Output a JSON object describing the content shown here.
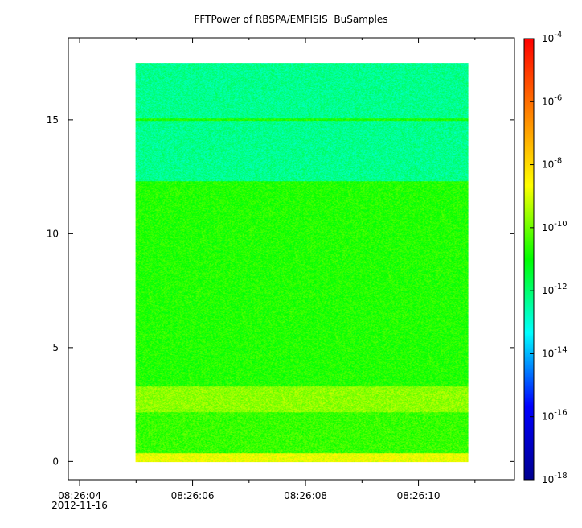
{
  "chart_data": {
    "type": "heatmap",
    "title": "FFTPower of RBSPA/EMFISIS  BuSamples",
    "xlabel": "",
    "ylabel": "",
    "x_axis": {
      "ticks": [
        {
          "seconds": 4,
          "label": "08:26:04",
          "sublabel": "2012-11-16"
        },
        {
          "seconds": 6,
          "label": "08:26:06",
          "sublabel": ""
        },
        {
          "seconds": 8,
          "label": "08:26:08",
          "sublabel": ""
        },
        {
          "seconds": 10,
          "label": "08:26:10",
          "sublabel": ""
        }
      ],
      "minor_ticks": [
        5,
        7,
        9,
        11
      ],
      "range_seconds": [
        3.8,
        11.7
      ]
    },
    "y_axis": {
      "ticks": [
        0,
        5,
        10,
        15
      ],
      "tick_labels": [
        "0",
        "5",
        "10",
        "15"
      ],
      "range": [
        -0.8,
        18.6
      ]
    },
    "data_extent": {
      "x_seconds": [
        4.99,
        10.88
      ],
      "y": [
        0,
        17.5
      ]
    },
    "colorbar": {
      "scale": "log",
      "range": [
        1e-18,
        0.0001
      ],
      "ticks": [
        {
          "value": 0.0001,
          "base": "10",
          "exp": "-4"
        },
        {
          "value": 1e-06,
          "base": "10",
          "exp": "-6"
        },
        {
          "value": 1e-08,
          "base": "10",
          "exp": "-8"
        },
        {
          "value": 1e-10,
          "base": "10",
          "exp": "-10"
        },
        {
          "value": 1e-12,
          "base": "10",
          "exp": "-12"
        },
        {
          "value": 1e-14,
          "base": "10",
          "exp": "-14"
        },
        {
          "value": 1e-16,
          "base": "10",
          "exp": "-16"
        },
        {
          "value": 1e-18,
          "base": "10",
          "exp": "-18"
        }
      ],
      "colormap": [
        "#00008f",
        "#0000ff",
        "#00ffff",
        "#00ff00",
        "#ffff00",
        "#ff8000",
        "#ff0000"
      ]
    },
    "bands": [
      {
        "y_from": 12.3,
        "y_to": 17.5,
        "log10_power": -12.3
      },
      {
        "y_from": 14.95,
        "y_to": 15.05,
        "log10_power": -10.8
      },
      {
        "y_from": 3.3,
        "y_to": 12.3,
        "log10_power": -10.7
      },
      {
        "y_from": 2.2,
        "y_to": 3.3,
        "log10_power": -9.7
      },
      {
        "y_from": 0.4,
        "y_to": 2.2,
        "log10_power": -10.5
      },
      {
        "y_from": 0.0,
        "y_to": 0.4,
        "log10_power": -8.8
      }
    ]
  }
}
